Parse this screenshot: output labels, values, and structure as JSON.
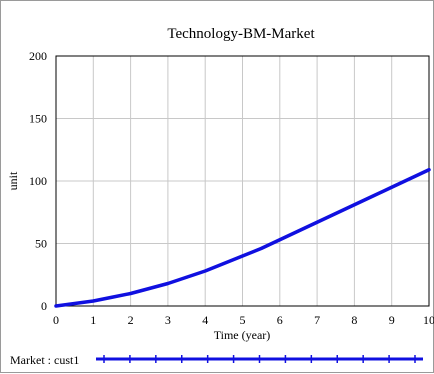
{
  "chart_data": {
    "type": "line",
    "title": "Technology-BM-Market",
    "xlabel": "Time (year)",
    "ylabel": "unit",
    "xlim": [
      0,
      10
    ],
    "ylim": [
      0,
      200
    ],
    "x_ticks": [
      "0",
      "1",
      "2",
      "3",
      "4",
      "5",
      "6",
      "7",
      "8",
      "9",
      "10"
    ],
    "y_ticks": [
      "0",
      "50",
      "100",
      "150",
      "200"
    ],
    "grid": true,
    "legend_position": "bottom-left",
    "series": [
      {
        "name": "Market : cust1",
        "color": "#1010e0",
        "marker": "vertical-tick",
        "x": [
          0,
          0.5,
          1,
          1.5,
          2,
          2.5,
          3,
          3.5,
          4,
          4.5,
          5,
          5.5,
          6,
          6.5,
          7,
          7.5,
          8,
          8.5,
          9,
          9.5,
          10
        ],
        "y": [
          0,
          2,
          4,
          7,
          10,
          14,
          18,
          23,
          28,
          34,
          40,
          46,
          53,
          60,
          67,
          74,
          81,
          88,
          95,
          102,
          109
        ]
      }
    ]
  }
}
